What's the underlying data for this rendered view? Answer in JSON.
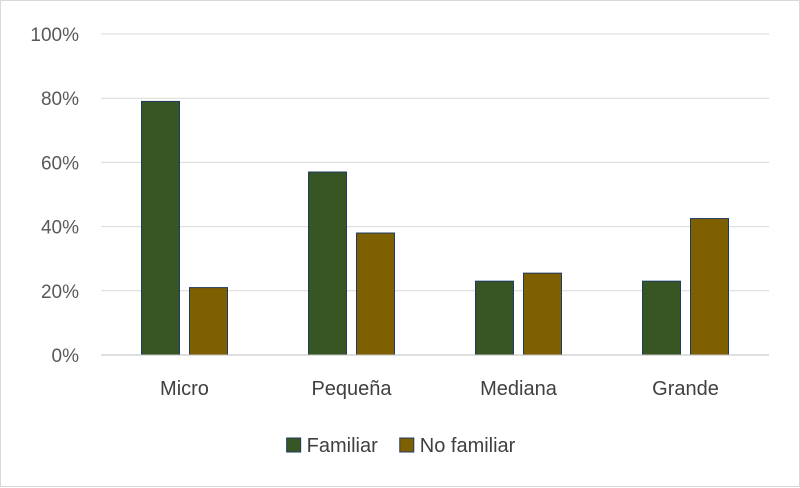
{
  "chart_data": {
    "type": "bar",
    "title": "",
    "xlabel": "",
    "ylabel": "",
    "categories": [
      "Micro",
      "Pequeña",
      "Mediana",
      "Grande"
    ],
    "series": [
      {
        "name": "Familiar",
        "values": [
          0.79,
          0.57,
          0.23,
          0.23
        ],
        "color": "#375623"
      },
      {
        "name": "No familiar",
        "values": [
          0.21,
          0.38,
          0.255,
          0.425
        ],
        "color": "#7f6000"
      }
    ],
    "yticks": [
      "0%",
      "20%",
      "40%",
      "60%",
      "80%",
      "100%"
    ],
    "ylim": [
      0,
      1
    ],
    "grid": true,
    "legend_position": "bottom"
  }
}
